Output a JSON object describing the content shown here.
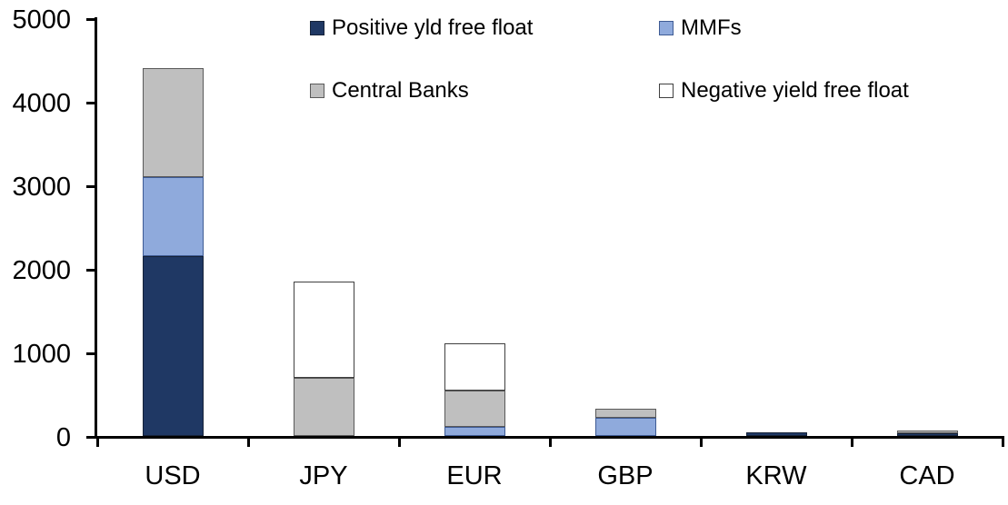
{
  "chart_data": {
    "type": "bar",
    "stacked": true,
    "categories": [
      "USD",
      "JPY",
      "EUR",
      "GBP",
      "KRW",
      "CAD"
    ],
    "series": [
      {
        "name": "Positive yld free float",
        "color": "#1F3864",
        "border": "#152238",
        "values": [
          2150,
          0,
          0,
          0,
          45,
          30
        ]
      },
      {
        "name": "MMFs",
        "color": "#8FAADC",
        "border": "#3E5B94",
        "values": [
          950,
          0,
          110,
          220,
          0,
          0
        ]
      },
      {
        "name": "Central Banks",
        "color": "#BFBFBF",
        "border": "#595959",
        "values": [
          1300,
          700,
          435,
          110,
          0,
          30
        ]
      },
      {
        "name": "Negative yield free float",
        "color": "#FFFFFF",
        "border": "#404040",
        "values": [
          0,
          1150,
          565,
          0,
          0,
          0
        ]
      }
    ],
    "totals": [
      4400,
      1850,
      1110,
      330,
      45,
      60
    ],
    "ylim": [
      0,
      5000
    ],
    "yticks": [
      "0",
      "1000",
      "2000",
      "3000",
      "4000",
      "5000"
    ],
    "xlabel": "",
    "ylabel": "",
    "title": "",
    "grid": false,
    "legend_position": "top",
    "legend_rows": [
      [
        "Positive yld free float",
        "MMFs"
      ],
      [
        "Central Banks",
        "Negative yield free float"
      ]
    ],
    "axis_color": "#000000",
    "background": "#FFFFFF"
  }
}
